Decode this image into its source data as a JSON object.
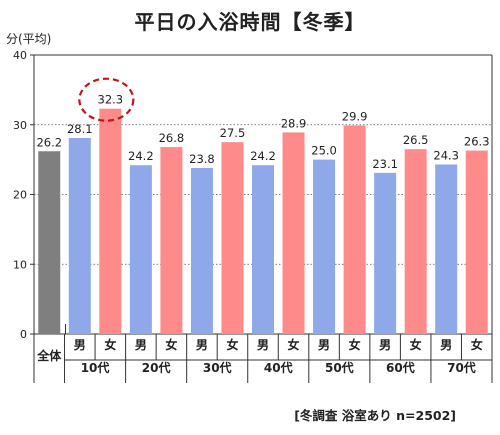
{
  "chart_data": {
    "type": "bar",
    "title": "平日の入浴時間【冬季】",
    "ylabel": "分(平均)",
    "ylim": [
      0,
      40
    ],
    "yticks": [
      "0",
      "10",
      "20",
      "30",
      "40"
    ],
    "gridlines": [
      10,
      20,
      30
    ],
    "gridline_style": "dotted",
    "bars": [
      {
        "label": "",
        "group": "全体",
        "value": 26.2,
        "value_label": "26.2",
        "color": "#7f7f7f"
      },
      {
        "label": "男",
        "group": "10代",
        "value": 28.1,
        "value_label": "28.1",
        "color": "#8ea8ea"
      },
      {
        "label": "女",
        "group": "10代",
        "value": 32.3,
        "value_label": "32.3",
        "color": "#ff8a8a",
        "highlight": true
      },
      {
        "label": "男",
        "group": "20代",
        "value": 24.2,
        "value_label": "24.2",
        "color": "#8ea8ea"
      },
      {
        "label": "女",
        "group": "20代",
        "value": 26.8,
        "value_label": "26.8",
        "color": "#ff8a8a"
      },
      {
        "label": "男",
        "group": "30代",
        "value": 23.8,
        "value_label": "23.8",
        "color": "#8ea8ea"
      },
      {
        "label": "女",
        "group": "30代",
        "value": 27.5,
        "value_label": "27.5",
        "color": "#ff8a8a"
      },
      {
        "label": "男",
        "group": "40代",
        "value": 24.2,
        "value_label": "24.2",
        "color": "#8ea8ea"
      },
      {
        "label": "女",
        "group": "40代",
        "value": 28.9,
        "value_label": "28.9",
        "color": "#ff8a8a"
      },
      {
        "label": "男",
        "group": "50代",
        "value": 25.0,
        "value_label": "25.0",
        "color": "#8ea8ea"
      },
      {
        "label": "女",
        "group": "50代",
        "value": 29.9,
        "value_label": "29.9",
        "color": "#ff8a8a"
      },
      {
        "label": "男",
        "group": "60代",
        "value": 23.1,
        "value_label": "23.1",
        "color": "#8ea8ea"
      },
      {
        "label": "女",
        "group": "60代",
        "value": 26.5,
        "value_label": "26.5",
        "color": "#ff8a8a"
      },
      {
        "label": "男",
        "group": "70代",
        "value": 24.3,
        "value_label": "24.3",
        "color": "#8ea8ea"
      },
      {
        "label": "女",
        "group": "70代",
        "value": 26.3,
        "value_label": "26.3",
        "color": "#ff8a8a"
      }
    ],
    "groups": [
      "全体",
      "10代",
      "20代",
      "30代",
      "40代",
      "50代",
      "60代",
      "70代"
    ],
    "highlight_color": "#c0141b",
    "note": "[冬調査 浴室あり n=2502]"
  }
}
